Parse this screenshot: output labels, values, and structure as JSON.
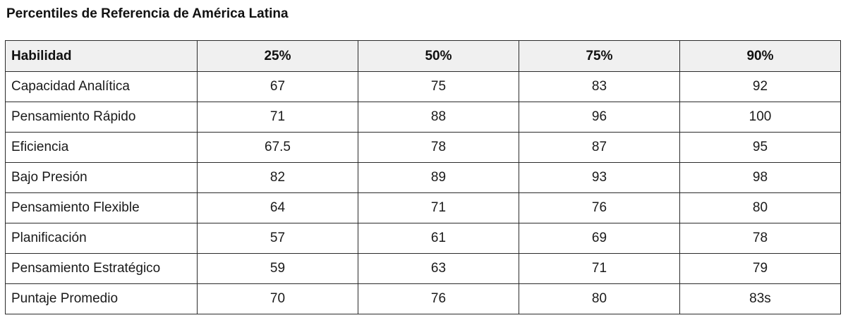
{
  "title": "Percentiles de Referencia de América Latina",
  "table": {
    "headers": [
      "Habilidad",
      "25%",
      "50%",
      "75%",
      "90%"
    ],
    "rows": [
      [
        "Capacidad Analítica",
        "67",
        "75",
        "83",
        "92"
      ],
      [
        "Pensamiento Rápido",
        "71",
        "88",
        "96",
        "100"
      ],
      [
        "Eficiencia",
        "67.5",
        "78",
        "87",
        "95"
      ],
      [
        "Bajo Presión",
        "82",
        "89",
        "93",
        "98"
      ],
      [
        "Pensamiento Flexible",
        "64",
        "71",
        "76",
        "80"
      ],
      [
        "Planificación",
        "57",
        "61",
        "69",
        "78"
      ],
      [
        "Pensamiento Estratégico",
        "59",
        "63",
        "71",
        "79"
      ],
      [
        "Puntaje Promedio",
        "70",
        "76",
        "80",
        "83s"
      ]
    ]
  }
}
